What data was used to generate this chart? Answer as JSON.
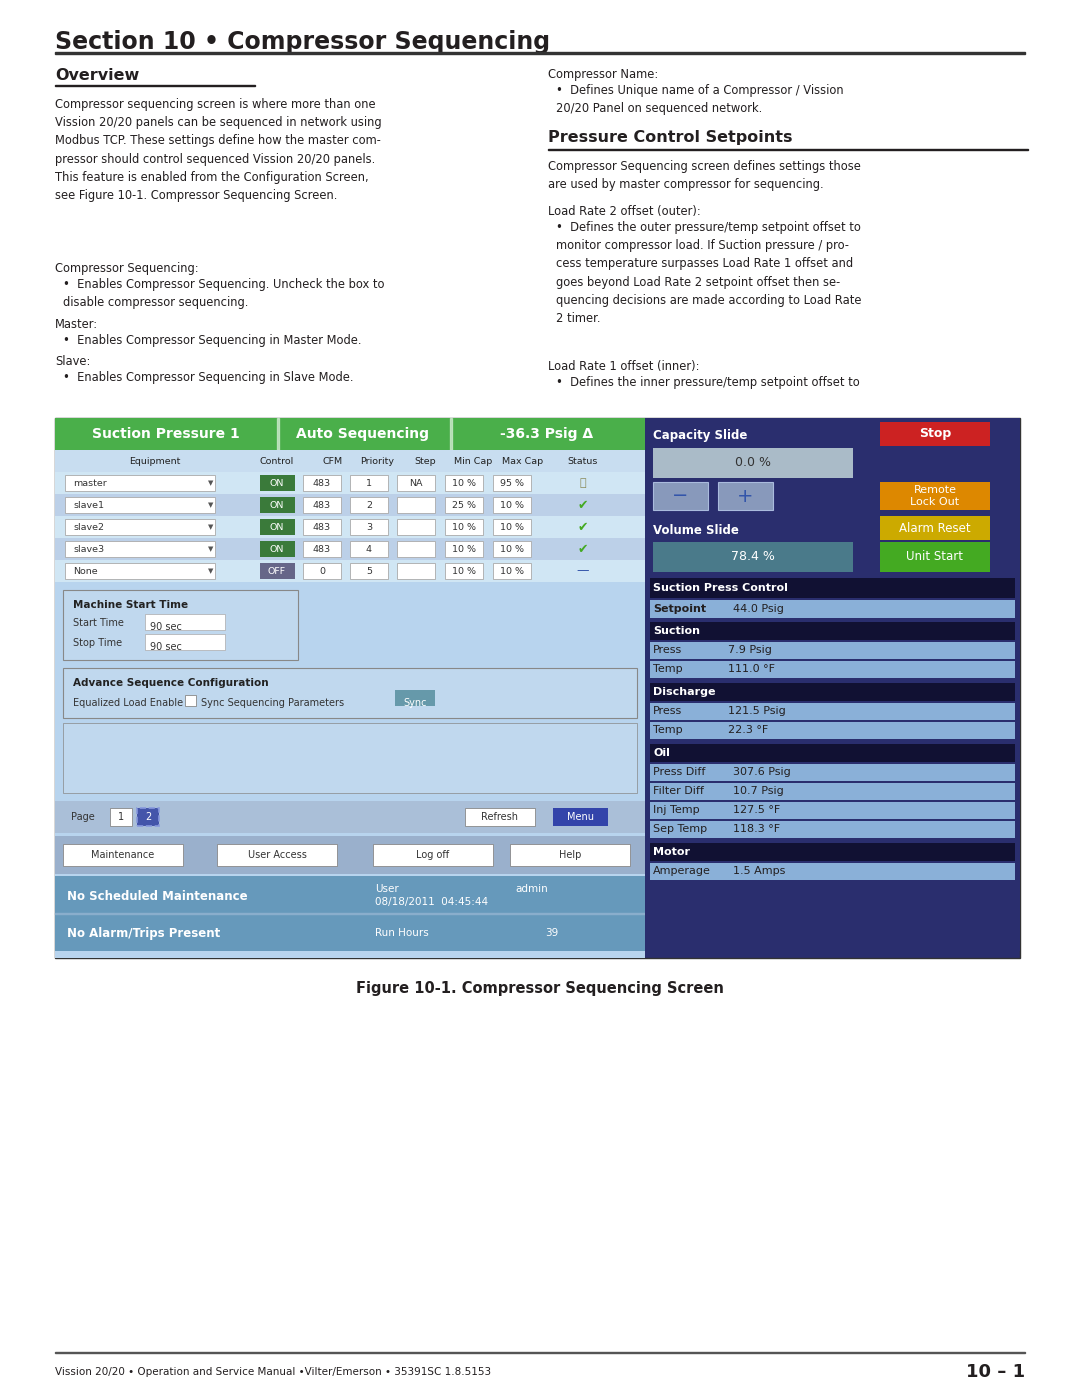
{
  "title": "Section 10 • Compressor Sequencing",
  "footer_left": "Vission 20/20 • Operation and Service Manual •Vilter/Emerson • 35391SC 1.8.5153",
  "footer_right": "10 – 1",
  "overview_title": "Overview",
  "overview_body": "Compressor sequencing screen is where more than one\nVission 20/20 panels can be sequenced in network using\nModbus TCP. These settings define how the master com-\npressor should control sequenced Vission 20/20 panels.\nThis feature is enabled from the Configuration Screen,\nsee Figure 10-1. Compressor Sequencing Screen.",
  "comp_seq_head": "Compressor Sequencing:",
  "comp_seq_bullet": "Enables Compressor Sequencing. Uncheck the box to\ndisable compressor sequencing.",
  "master_head": "Master:",
  "master_bullet": "Enables Compressor Sequencing in Master Mode.",
  "slave_head": "Slave:",
  "slave_bullet": "Enables Compressor Sequencing in Slave Mode.",
  "comp_name_head": "Compressor Name:",
  "comp_name_bullet": "Defines Unique name of a Compressor / Vission\n20/20 Panel on sequenced network.",
  "pressure_title": "Pressure Control Setpoints",
  "pressure_body": "Compressor Sequencing screen defines settings those\nare used by master compressor for sequencing.",
  "load2_head": "Load Rate 2 offset (outer):",
  "load2_bullet": "Defines the outer pressure/temp setpoint offset to\nmonitor compressor load. If Suction pressure / pro-\ncess temperature surpasses Load Rate 1 offset and\ngoes beyond Load Rate 2 setpoint offset then se-\nquencing decisions are made according to Load Rate\n2 timer.",
  "load1_head": "Load Rate 1 offset (inner):",
  "load1_bullet": "Defines the inner pressure/temp setpoint offset to",
  "figure_caption": "Figure 10-1. Compressor Sequencing Screen",
  "suction_hdr": "Suction Pressure 1",
  "auto_hdr": "Auto Sequencing",
  "pressure_hdr": "-36.3 Psig Δ",
  "cap_slide": "Capacity Slide",
  "stop_btn": "Stop",
  "remote_btn": "Remote\nLock Out",
  "alarm_btn": "Alarm Reset",
  "unit_btn": "Unit Start",
  "vol_slide": "Volume Slide",
  "cap_val": "0.0 %",
  "vol_val": "78.4 %",
  "spc_lbl": "Suction Press Control",
  "setpoint_lbl": "Setpoint",
  "setpoint_val": "44.0 Psig",
  "suction_lbl": "Suction",
  "press_lbl": "Press",
  "suct_press": "7.9 Psig",
  "temp_lbl": "Temp",
  "suct_temp": "111.0 °F",
  "disc_lbl": "Discharge",
  "disc_press": "121.5 Psig",
  "disc_temp": "22.3 °F",
  "oil_lbl": "Oil",
  "pd_lbl": "Press Diff",
  "pd_val": "307.6 Psig",
  "fd_lbl": "Filter Diff",
  "fd_val": "10.7 Psig",
  "it_lbl": "Inj Temp",
  "it_val": "127.5 °F",
  "st_lbl": "Sep Temp",
  "st_val": "118.3 °F",
  "motor_lbl": "Motor",
  "amp_lbl": "Amperage",
  "amp_val": "1.5 Amps",
  "bg": "#ffffff",
  "tc": "#231f20",
  "green_hdr": "#4aaf4a",
  "dark_blue": "#2a2e6e",
  "mid_blue": "#5577cc",
  "light_blue": "#aaccee",
  "screen_bg": "#b8d4ee",
  "tbl_hdr_bg": "#c8ddf0",
  "tbl_row0": "#d0e6f4",
  "tbl_row1": "#bcd0e8",
  "dark_row": "#000033",
  "blk": "#000000",
  "cap_grey": "#aabbc8",
  "vol_teal": "#4a7a8a",
  "stop_red": "#cc2222",
  "remote_orange": "#dd8800",
  "alarm_yellow": "#ccaa00",
  "unit_green": "#44aa22",
  "spc_header": "#111133",
  "spc_row_bg": "#8ab0d8",
  "spc_dark": "#111133",
  "nav_bg": "#aabfd8",
  "btn_bg": "#9ab0cc",
  "stat_bg": "#6699bb",
  "stat_text": "#ffffff"
}
